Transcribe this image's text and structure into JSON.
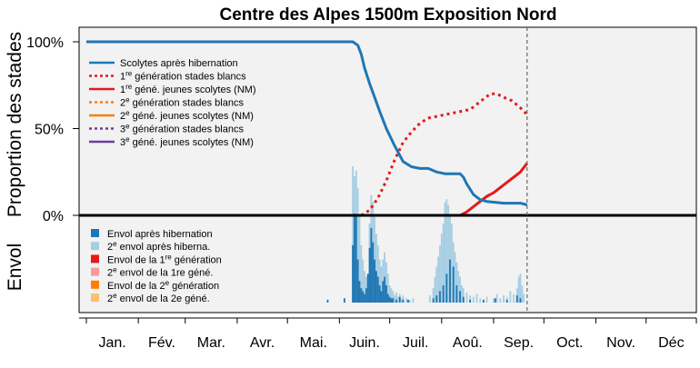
{
  "chart_data": {
    "type": "line",
    "title": "Centre des Alpes 1500m Exposition Nord",
    "ylabel_top": "Proportion des stades",
    "ylabel_bottom": "Envol",
    "yticks": [
      "100%",
      "50%",
      "0%"
    ],
    "ylim": [
      0,
      100
    ],
    "x_unit": "day_of_year",
    "xlim": [
      1,
      365
    ],
    "months": [
      "Jan.",
      "Fév.",
      "Mar.",
      "Avr.",
      "Mai.",
      "Juin.",
      "Juil.",
      "Aoû.",
      "Sep.",
      "Oct.",
      "Nov.",
      "Déc"
    ],
    "current_day": 264,
    "colors": {
      "panel_bg": "#f2f2f2",
      "blue": "#1f77b4",
      "light_blue": "#a6cee3",
      "red": "#e31a1c",
      "pink": "#fb9a99",
      "orange": "#ff7f00",
      "light_orange": "#fdbf6f",
      "purple": "#6a3d9a"
    },
    "series": [
      {
        "name_main": "Scolytes après hibernation",
        "name_sup": "",
        "name_tail": "",
        "color": "#1f77b4",
        "dash": "solid",
        "x": [
          1,
          160,
          163,
          165,
          167,
          170,
          173,
          176,
          180,
          185,
          190,
          195,
          200,
          205,
          210,
          215,
          220,
          224,
          226,
          228,
          232,
          236,
          240,
          250,
          260,
          264
        ],
        "y": [
          100,
          100,
          98,
          93,
          85,
          76,
          68,
          60,
          50,
          40,
          31,
          28,
          27,
          27,
          25,
          24,
          24,
          24,
          22,
          18,
          12,
          9,
          8,
          7,
          7,
          6
        ]
      },
      {
        "name_main": "1",
        "name_sup": "re",
        "name_tail": " génération stades blancs",
        "color": "#e31a1c",
        "dash": "dot",
        "x": [
          165,
          170,
          175,
          180,
          185,
          190,
          195,
          200,
          205,
          210,
          215,
          220,
          225,
          230,
          234,
          238,
          242,
          246,
          250,
          255,
          260,
          264
        ],
        "y": [
          0,
          3,
          10,
          20,
          32,
          42,
          48,
          53,
          56,
          57,
          58,
          59,
          60,
          61,
          64,
          67,
          70,
          70,
          68,
          66,
          62,
          58
        ]
      },
      {
        "name_main": "1",
        "name_sup": "re",
        "name_tail": " géné. jeunes scolytes (NM)",
        "color": "#e31a1c",
        "dash": "solid",
        "x": [
          1,
          224,
          228,
          232,
          236,
          240,
          244,
          248,
          252,
          256,
          260,
          264
        ],
        "y": [
          0,
          0,
          2,
          5,
          8,
          11,
          13,
          16,
          19,
          22,
          25,
          30
        ]
      },
      {
        "name_main": "2",
        "name_sup": "e",
        "name_tail": " génération stades blancs",
        "color": "#ff7f00",
        "dash": "dot",
        "x": [
          1,
          264
        ],
        "y": [
          0,
          0
        ]
      },
      {
        "name_main": "2",
        "name_sup": "e",
        "name_tail": " géné. jeunes scolytes (NM)",
        "color": "#ff7f00",
        "dash": "solid",
        "x": [
          1,
          264
        ],
        "y": [
          0,
          0
        ]
      },
      {
        "name_main": "3",
        "name_sup": "e",
        "name_tail": " génération stades blancs",
        "color": "#6a3d9a",
        "dash": "dot",
        "x": [
          1,
          264
        ],
        "y": [
          0,
          0
        ]
      },
      {
        "name_main": "3",
        "name_sup": "e",
        "name_tail": " géné. jeunes scolytes (NM)",
        "color": "#6a3d9a",
        "dash": "solid",
        "x": [
          1,
          264
        ],
        "y": [
          0,
          0
        ]
      }
    ],
    "flight_legend": [
      {
        "name_pre": "Envol après hibernation",
        "name_sup": "",
        "name_post": "",
        "color": "#1f77b4"
      },
      {
        "name_pre": "2",
        "name_sup": "e",
        "name_post": " envol après hiberna.",
        "color": "#a6cee3"
      },
      {
        "name_pre": "Envol de la 1",
        "name_sup": "re",
        "name_post": " génération",
        "color": "#e31a1c"
      },
      {
        "name_pre": "2",
        "name_sup": "e",
        "name_post": " envol de la 1re géné.",
        "color": "#fb9a99"
      },
      {
        "name_pre": "Envol de la 2",
        "name_sup": "e",
        "name_post": " génération",
        "color": "#ff7f00"
      },
      {
        "name_pre": "2",
        "name_sup": "e",
        "name_post": " envol de la 2e géné.",
        "color": "#fdbf6f"
      }
    ],
    "flight_bars": {
      "color_main": "#1f77b4",
      "color_second": "#a6cee3",
      "ylim": [
        0,
        100
      ],
      "main": [
        [
          145,
          2
        ],
        [
          155,
          3
        ],
        [
          160,
          40
        ],
        [
          161,
          62
        ],
        [
          162,
          60
        ],
        [
          163,
          30
        ],
        [
          164,
          15
        ],
        [
          165,
          10
        ],
        [
          166,
          8
        ],
        [
          167,
          6
        ],
        [
          168,
          10
        ],
        [
          169,
          20
        ],
        [
          170,
          38
        ],
        [
          171,
          52
        ],
        [
          172,
          42
        ],
        [
          173,
          30
        ],
        [
          174,
          22
        ],
        [
          175,
          18
        ],
        [
          176,
          12
        ],
        [
          177,
          8
        ],
        [
          178,
          15
        ],
        [
          179,
          18
        ],
        [
          180,
          12
        ],
        [
          181,
          6
        ],
        [
          182,
          4
        ],
        [
          183,
          3
        ],
        [
          184,
          3
        ],
        [
          186,
          2
        ],
        [
          188,
          4
        ],
        [
          190,
          2
        ],
        [
          193,
          2
        ],
        [
          208,
          3
        ],
        [
          210,
          5
        ],
        [
          212,
          8
        ],
        [
          214,
          12
        ],
        [
          216,
          20
        ],
        [
          218,
          30
        ],
        [
          220,
          25
        ],
        [
          222,
          12
        ],
        [
          224,
          8
        ],
        [
          226,
          4
        ],
        [
          230,
          2
        ],
        [
          238,
          2
        ],
        [
          245,
          3
        ],
        [
          252,
          2
        ],
        [
          258,
          5
        ],
        [
          260,
          3
        ]
      ],
      "second": [
        [
          160,
          95
        ],
        [
          161,
          88
        ],
        [
          162,
          92
        ],
        [
          163,
          80
        ],
        [
          164,
          60
        ],
        [
          165,
          40
        ],
        [
          166,
          30
        ],
        [
          167,
          22
        ],
        [
          168,
          18
        ],
        [
          169,
          12
        ],
        [
          170,
          55
        ],
        [
          171,
          75
        ],
        [
          172,
          70
        ],
        [
          173,
          60
        ],
        [
          174,
          48
        ],
        [
          175,
          40
        ],
        [
          176,
          30
        ],
        [
          177,
          25
        ],
        [
          178,
          30
        ],
        [
          179,
          35
        ],
        [
          180,
          28
        ],
        [
          181,
          20
        ],
        [
          182,
          12
        ],
        [
          183,
          10
        ],
        [
          184,
          8
        ],
        [
          185,
          5
        ],
        [
          186,
          7
        ],
        [
          187,
          4
        ],
        [
          188,
          6
        ],
        [
          189,
          3
        ],
        [
          190,
          5
        ],
        [
          192,
          3
        ],
        [
          194,
          2
        ],
        [
          196,
          3
        ],
        [
          206,
          5
        ],
        [
          208,
          10
        ],
        [
          209,
          18
        ],
        [
          210,
          25
        ],
        [
          211,
          32
        ],
        [
          212,
          40
        ],
        [
          213,
          48
        ],
        [
          214,
          55
        ],
        [
          215,
          70
        ],
        [
          216,
          72
        ],
        [
          217,
          68
        ],
        [
          218,
          60
        ],
        [
          219,
          55
        ],
        [
          220,
          42
        ],
        [
          221,
          35
        ],
        [
          222,
          28
        ],
        [
          223,
          22
        ],
        [
          224,
          18
        ],
        [
          225,
          12
        ],
        [
          226,
          10
        ],
        [
          228,
          7
        ],
        [
          230,
          5
        ],
        [
          232,
          4
        ],
        [
          234,
          6
        ],
        [
          236,
          3
        ],
        [
          240,
          4
        ],
        [
          244,
          3
        ],
        [
          246,
          6
        ],
        [
          248,
          3
        ],
        [
          250,
          5
        ],
        [
          252,
          4
        ],
        [
          254,
          8
        ],
        [
          256,
          6
        ],
        [
          258,
          10
        ],
        [
          259,
          18
        ],
        [
          260,
          20
        ],
        [
          261,
          12
        ],
        [
          262,
          6
        ]
      ]
    }
  }
}
